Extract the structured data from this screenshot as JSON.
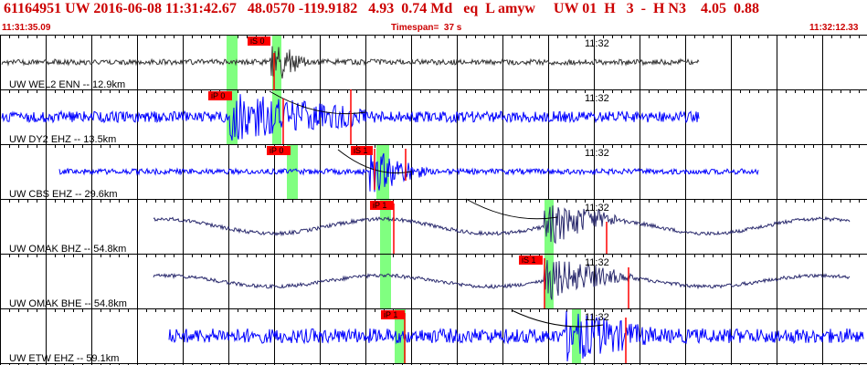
{
  "header": {
    "title": "61164951 UW 2016-06-08 11:31:42.67   48.0570 -119.9182   4.93  0.74 Md   eq  L amyw     UW 01  H   3  -  H N3    4.05  0.88",
    "start_time": "11:31:35.09",
    "timespan": "Timespan=  37 s",
    "end_time": "11:32:12.33"
  },
  "minute_label": "11:32",
  "colors": {
    "header_text": "#cc0000",
    "trace_blue": "#0000ff",
    "trace_dark": "#2b2b6e",
    "trace_gray": "#333333",
    "pick_box": "#ff0000",
    "phase_window": "#80ff80",
    "grid": "#000000"
  },
  "traces": [
    {
      "label": "UW WEL2 ENN -- 12.9km",
      "color": "#333333",
      "picks": [
        {
          "text": "iS 0",
          "style": "box"
        }
      ]
    },
    {
      "label": "UW DY2 EHZ -- 13.5km",
      "color": "#0000ff",
      "picks": [
        {
          "text": "iP 0",
          "style": "box"
        }
      ]
    },
    {
      "label": "UW CBS EHZ -- 29.6km",
      "color": "#0000ff",
      "picks": [
        {
          "text": "iP 0",
          "style": "box"
        },
        {
          "text": "iS 1",
          "style": "box"
        }
      ]
    },
    {
      "label": "UW OMAK BHZ -- 54.8km",
      "color": "#2b2b6e",
      "picks": [
        {
          "text": "iP 1",
          "style": "box"
        }
      ]
    },
    {
      "label": "UW OMAK BHE -- 54.8km",
      "color": "#2b2b6e",
      "picks": [
        {
          "text": "iS 1",
          "style": "box"
        }
      ]
    },
    {
      "label": "UW ETW EHZ -- 59.1km",
      "color": "#0000ff",
      "picks": [
        {
          "text": "iP 1",
          "style": "box"
        }
      ]
    }
  ]
}
